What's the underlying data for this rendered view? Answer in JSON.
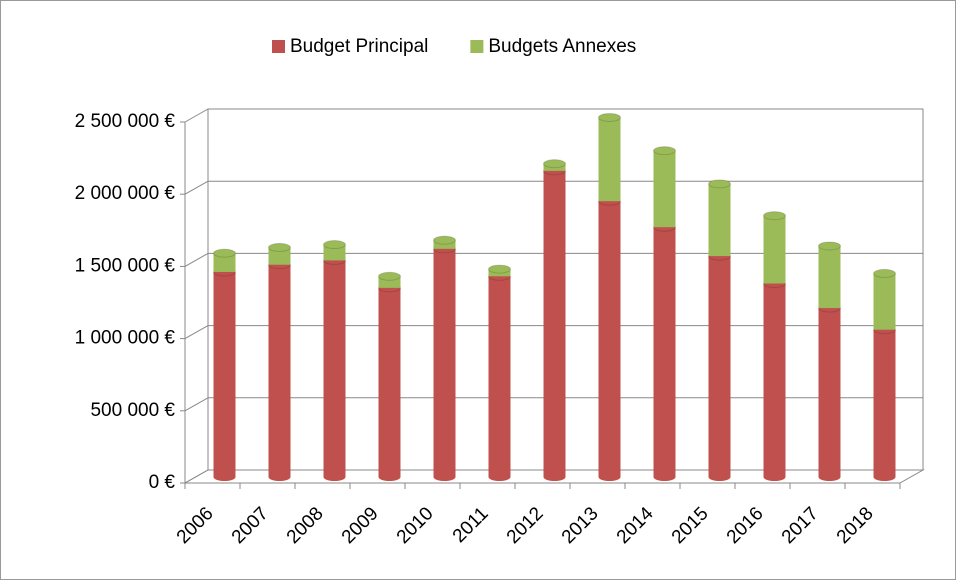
{
  "chart_data": {
    "type": "bar",
    "stacked": true,
    "categories": [
      "2006",
      "2007",
      "2008",
      "2009",
      "2010",
      "2011",
      "2012",
      "2013",
      "2014",
      "2015",
      "2016",
      "2017",
      "2018"
    ],
    "series": [
      {
        "name": "Budget Principal",
        "color": "#c0504d",
        "values": [
          1420000,
          1470000,
          1500000,
          1310000,
          1580000,
          1390000,
          2120000,
          1910000,
          1730000,
          1530000,
          1340000,
          1170000,
          1020000
        ]
      },
      {
        "name": "Budgets Annexes",
        "color": "#9bbb59",
        "values": [
          130000,
          120000,
          110000,
          80000,
          60000,
          50000,
          50000,
          580000,
          530000,
          500000,
          470000,
          430000,
          390000
        ]
      }
    ],
    "ylim": [
      0,
      2500000
    ],
    "yticks": [
      {
        "value": 0,
        "label": "0 €"
      },
      {
        "value": 500000,
        "label": "500 000 €"
      },
      {
        "value": 1000000,
        "label": "1 000 000 €"
      },
      {
        "value": 1500000,
        "label": "1 500 000 €"
      },
      {
        "value": 2000000,
        "label": "2 000 000 €"
      },
      {
        "value": 2500000,
        "label": "2 500 000 €"
      }
    ],
    "grid": true,
    "legend": "top"
  }
}
